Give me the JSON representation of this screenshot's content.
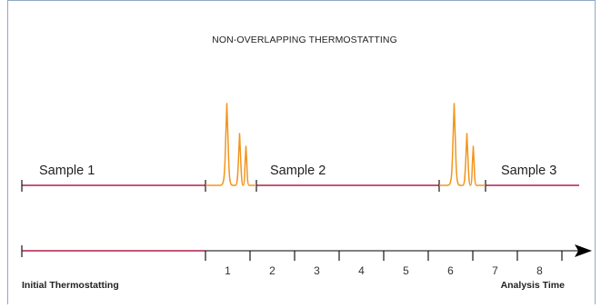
{
  "title": "NON-OVERLAPPING THERMOSTATTING",
  "samples": [
    {
      "label": "Sample 1"
    },
    {
      "label": "Sample 2"
    },
    {
      "label": "Sample 3"
    }
  ],
  "axis": {
    "ticks": [
      "1",
      "2",
      "3",
      "4",
      "5",
      "6",
      "7",
      "8"
    ],
    "left_caption": "Initial Thermostatting",
    "right_caption": "Analysis Time"
  },
  "colors": {
    "timeline": "#b0204a",
    "peaks": "#f0961e",
    "axis": "#000000",
    "frame": "#8fa9c3"
  }
}
